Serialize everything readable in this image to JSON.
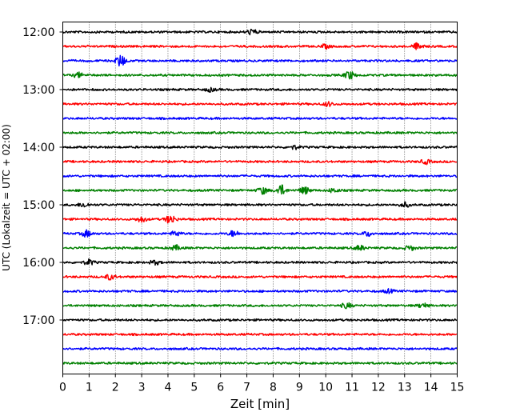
{
  "chart_data": {
    "type": "line",
    "title": "",
    "xlabel": "Zeit  [min]",
    "ylabel": "UTC (Lokalzeit = UTC + 02:00)",
    "xlim": [
      0,
      15
    ],
    "x_ticks": [
      "0",
      "1",
      "2",
      "3",
      "4",
      "5",
      "6",
      "7",
      "8",
      "9",
      "10",
      "11",
      "12",
      "13",
      "14",
      "15"
    ],
    "y_ticks": [
      "12:00",
      "13:00",
      "14:00",
      "15:00",
      "16:00",
      "17:00"
    ],
    "grid": "vertical dotted",
    "trace_interval_min": 15,
    "series_colors": [
      "#000000",
      "#ff0000",
      "#0000ff",
      "#008000"
    ],
    "rows": [
      {
        "start": "12:00",
        "color": "#000000",
        "events": [
          {
            "t": 7.2,
            "a": 0.45
          }
        ]
      },
      {
        "start": "12:15",
        "color": "#ff0000",
        "events": [
          {
            "t": 13.5,
            "a": 0.55
          },
          {
            "t": 10.0,
            "a": 0.3
          }
        ]
      },
      {
        "start": "12:30",
        "color": "#0000ff",
        "events": [
          {
            "t": 2.2,
            "a": 1.0
          }
        ]
      },
      {
        "start": "12:45",
        "color": "#008000",
        "events": [
          {
            "t": 0.6,
            "a": 0.4
          },
          {
            "t": 10.9,
            "a": 0.7
          }
        ]
      },
      {
        "start": "13:00",
        "color": "#000000",
        "events": [
          {
            "t": 5.6,
            "a": 0.3
          }
        ]
      },
      {
        "start": "13:15",
        "color": "#ff0000",
        "events": [
          {
            "t": 10.1,
            "a": 0.35
          }
        ]
      },
      {
        "start": "13:30",
        "color": "#0000ff",
        "events": []
      },
      {
        "start": "13:45",
        "color": "#008000",
        "events": []
      },
      {
        "start": "14:00",
        "color": "#000000",
        "events": [
          {
            "t": 8.8,
            "a": 0.3
          }
        ]
      },
      {
        "start": "14:15",
        "color": "#ff0000",
        "events": [
          {
            "t": 13.8,
            "a": 0.35
          }
        ]
      },
      {
        "start": "14:30",
        "color": "#0000ff",
        "events": []
      },
      {
        "start": "14:45",
        "color": "#008000",
        "events": [
          {
            "t": 7.6,
            "a": 0.6
          },
          {
            "t": 8.3,
            "a": 0.9
          },
          {
            "t": 9.2,
            "a": 0.6
          },
          {
            "t": 10.3,
            "a": 0.35
          }
        ]
      },
      {
        "start": "15:00",
        "color": "#000000",
        "events": [
          {
            "t": 0.8,
            "a": 0.4
          },
          {
            "t": 13.0,
            "a": 0.4
          }
        ]
      },
      {
        "start": "15:15",
        "color": "#ff0000",
        "events": [
          {
            "t": 3.0,
            "a": 0.45
          },
          {
            "t": 4.1,
            "a": 0.75
          }
        ]
      },
      {
        "start": "15:30",
        "color": "#0000ff",
        "events": [
          {
            "t": 0.9,
            "a": 0.55
          },
          {
            "t": 4.3,
            "a": 0.4
          },
          {
            "t": 6.5,
            "a": 0.5
          },
          {
            "t": 11.6,
            "a": 0.4
          }
        ]
      },
      {
        "start": "15:45",
        "color": "#008000",
        "events": [
          {
            "t": 4.3,
            "a": 0.4
          },
          {
            "t": 11.3,
            "a": 0.4
          },
          {
            "t": 13.2,
            "a": 0.4
          }
        ]
      },
      {
        "start": "16:00",
        "color": "#000000",
        "events": [
          {
            "t": 1.0,
            "a": 0.45
          },
          {
            "t": 3.5,
            "a": 0.35
          }
        ]
      },
      {
        "start": "16:15",
        "color": "#ff0000",
        "events": [
          {
            "t": 1.8,
            "a": 0.45
          }
        ]
      },
      {
        "start": "16:30",
        "color": "#0000ff",
        "events": [
          {
            "t": 12.4,
            "a": 0.3
          }
        ]
      },
      {
        "start": "16:45",
        "color": "#008000",
        "events": [
          {
            "t": 10.8,
            "a": 0.45
          },
          {
            "t": 13.7,
            "a": 0.4
          }
        ]
      },
      {
        "start": "17:00",
        "color": "#000000",
        "events": []
      },
      {
        "start": "17:15",
        "color": "#ff0000",
        "events": []
      },
      {
        "start": "17:30",
        "color": "#0000ff",
        "events": []
      },
      {
        "start": "17:45",
        "color": "#008000",
        "events": []
      }
    ]
  }
}
